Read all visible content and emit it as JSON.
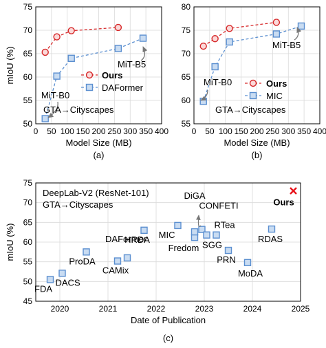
{
  "chart_data": [
    {
      "id": "a",
      "type": "line",
      "caption": "(a)",
      "xlabel": "Model Size (MB)",
      "ylabel": "mIoU (%)",
      "xlim": [
        0,
        400
      ],
      "ylim": [
        50,
        75
      ],
      "xticks": [
        0,
        50,
        100,
        150,
        200,
        250,
        300,
        350,
        400
      ],
      "yticks": [
        50,
        55,
        60,
        65,
        70,
        75
      ],
      "grid": true,
      "legend": "lower-right",
      "annotations": [
        "GTA→Cityscapes",
        "MiT-B0",
        "MiT-B5"
      ],
      "series": [
        {
          "name": "Ours",
          "color": "#d62728",
          "marker": "circle",
          "x": [
            30,
            67,
            113,
            262
          ],
          "y": [
            65.3,
            68.6,
            69.9,
            70.6
          ]
        },
        {
          "name": "DAFormer",
          "color": "#5b8fd0",
          "marker": "square",
          "x": [
            30,
            67,
            113,
            262,
            341
          ],
          "y": [
            51.1,
            60.2,
            64.0,
            66.1,
            68.3
          ]
        }
      ]
    },
    {
      "id": "b",
      "type": "line",
      "caption": "(b)",
      "xlabel": "Model Size (MB)",
      "ylabel": "",
      "xlim": [
        0,
        400
      ],
      "ylim": [
        55,
        80
      ],
      "xticks": [
        0,
        50,
        100,
        150,
        200,
        250,
        300,
        350,
        400
      ],
      "yticks": [
        55,
        60,
        65,
        70,
        75,
        80
      ],
      "grid": true,
      "legend": "lower-right",
      "annotations": [
        "GTA→Cityscapes",
        "MiT-B0",
        "MiT-B5"
      ],
      "series": [
        {
          "name": "Ours",
          "color": "#d62728",
          "marker": "circle",
          "x": [
            30,
            67,
            113,
            262
          ],
          "y": [
            71.6,
            73.2,
            75.4,
            76.7
          ]
        },
        {
          "name": "MIC",
          "color": "#5b8fd0",
          "marker": "square",
          "x": [
            30,
            67,
            113,
            262,
            341
          ],
          "y": [
            59.8,
            67.2,
            72.5,
            74.2,
            75.9
          ]
        }
      ]
    },
    {
      "id": "c",
      "type": "scatter",
      "caption": "(c)",
      "xlabel": "Date of Publication",
      "ylabel": "mIoU (%)",
      "xlim": [
        2019.5,
        2025
      ],
      "ylim": [
        45,
        75
      ],
      "xticks": [
        2020,
        2021,
        2022,
        2023,
        2024,
        2025
      ],
      "yticks": [
        45,
        50,
        55,
        60,
        65,
        70,
        75
      ],
      "grid": true,
      "annotations": [
        "DeepLab-V2 (ResNet-101)",
        "GTA→Cityscapes"
      ],
      "points": [
        {
          "label": "FDA",
          "x": 2019.8,
          "y": 50.5
        },
        {
          "label": "DACS",
          "x": 2020.05,
          "y": 52.1
        },
        {
          "label": "ProDA",
          "x": 2020.55,
          "y": 57.5
        },
        {
          "label": "CAMix",
          "x": 2021.2,
          "y": 55.2
        },
        {
          "label": "DAFormer",
          "x": 2021.4,
          "y": 56.0
        },
        {
          "label": "HRDA",
          "x": 2021.75,
          "y": 63.0
        },
        {
          "label": "MIC",
          "x": 2022.45,
          "y": 64.2
        },
        {
          "label": "Fredom",
          "x": 2022.8,
          "y": 61.2
        },
        {
          "label": "DiGA",
          "x": 2022.8,
          "y": 62.6
        },
        {
          "label": "CONFETI",
          "x": 2022.95,
          "y": 63.2
        },
        {
          "label": "SGG",
          "x": 2023.05,
          "y": 61.8
        },
        {
          "label": "RTea",
          "x": 2023.25,
          "y": 61.8
        },
        {
          "label": "PRN",
          "x": 2023.5,
          "y": 57.9
        },
        {
          "label": "MoDA",
          "x": 2023.9,
          "y": 54.8
        },
        {
          "label": "RDAS",
          "x": 2024.4,
          "y": 63.3
        },
        {
          "label": "Ours",
          "x": 2024.85,
          "y": 73.0,
          "marker": "x",
          "color": "#e8141c"
        }
      ]
    }
  ]
}
